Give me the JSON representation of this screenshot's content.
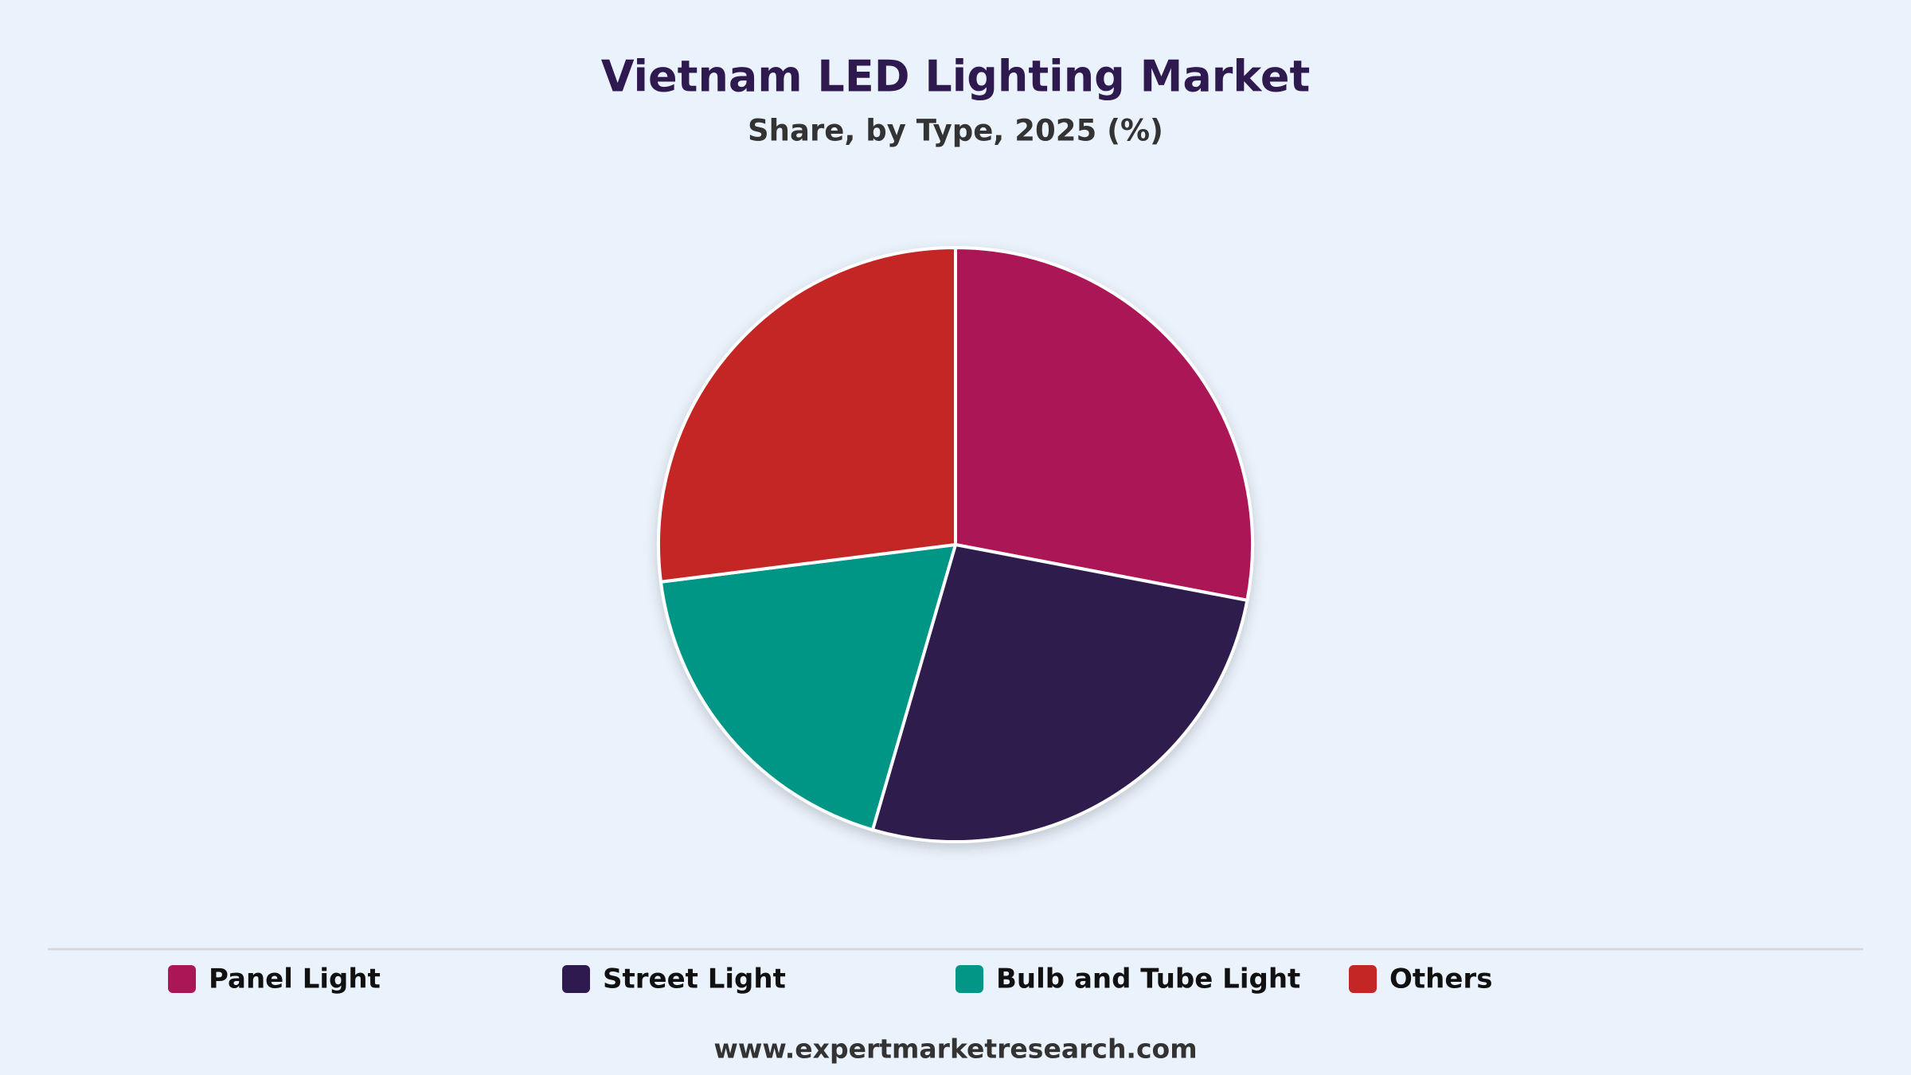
{
  "chart_data": {
    "type": "pie",
    "title": "Vietnam LED Lighting Market",
    "subtitle": "Share, by Type, 2025 (%)",
    "categories": [
      "Panel Light",
      "Street Light",
      "Bulb and Tube Light",
      "Others"
    ],
    "values": [
      28,
      26.5,
      18.5,
      27
    ],
    "colors": [
      "#ab1656",
      "#2e1a4e",
      "#019686",
      "#c42525"
    ],
    "legend": "bottom",
    "source": "www.expertmarketresearch.com"
  }
}
